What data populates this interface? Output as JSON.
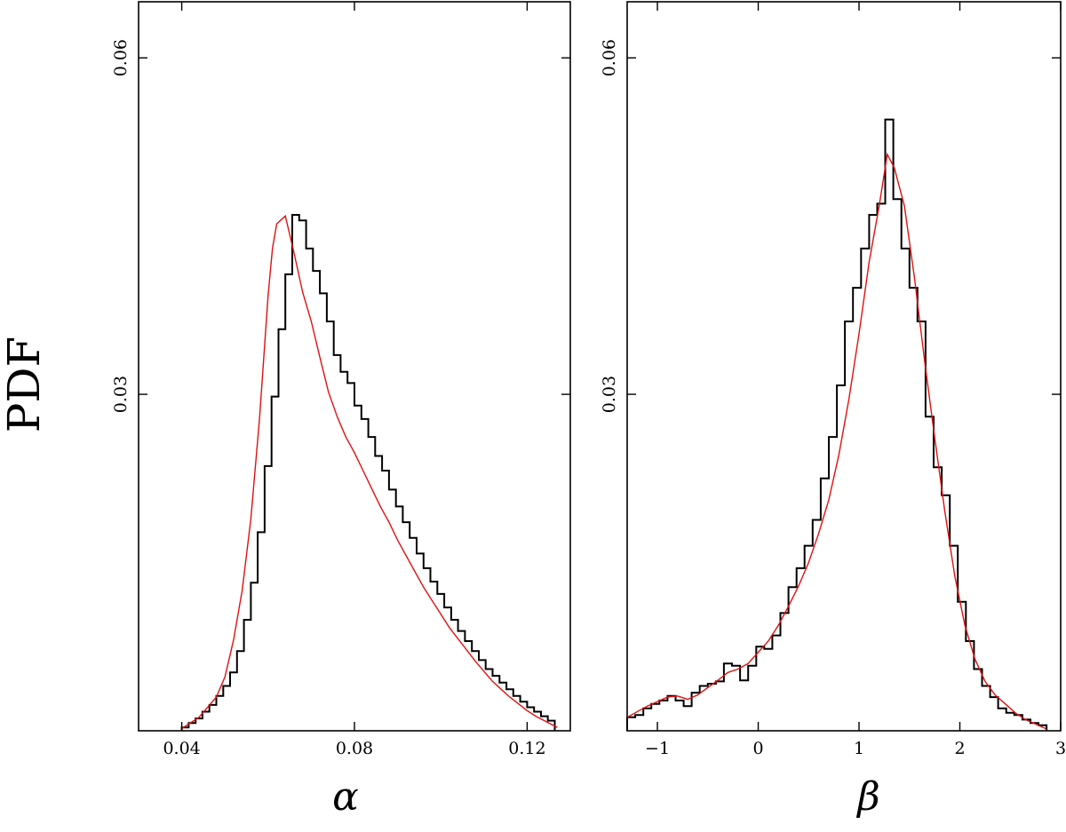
{
  "figure": {
    "ylabel": "PDF"
  },
  "chart_data": [
    {
      "type": "bar",
      "xlabel": "α",
      "ylabel": "PDF",
      "xlim": [
        0.03,
        0.13
      ],
      "ylim": [
        0.0,
        0.065
      ],
      "xticks": [
        0.04,
        0.08,
        0.12
      ],
      "xtick_labels": [
        "0.04",
        "0.08",
        "0.12"
      ],
      "yticks": [
        0.03,
        0.06
      ],
      "ytick_labels": [
        "0.03",
        "0.06"
      ],
      "grid": false,
      "series": [
        {
          "kind": "histogram-step",
          "color": "#000000",
          "bin_edges": [
            0.04,
            0.0416,
            0.0432,
            0.0448,
            0.0464,
            0.048,
            0.0496,
            0.0512,
            0.0528,
            0.0544,
            0.056,
            0.0576,
            0.0592,
            0.0608,
            0.0624,
            0.064,
            0.0656,
            0.0672,
            0.0688,
            0.0704,
            0.072,
            0.0736,
            0.0752,
            0.0768,
            0.0784,
            0.08,
            0.0816,
            0.0832,
            0.0848,
            0.0864,
            0.088,
            0.0896,
            0.0912,
            0.0928,
            0.0944,
            0.096,
            0.0976,
            0.0992,
            0.1008,
            0.1024,
            0.104,
            0.1056,
            0.1072,
            0.1088,
            0.1104,
            0.112,
            0.1136,
            0.1152,
            0.1168,
            0.1184,
            0.12,
            0.1216,
            0.1232,
            0.1248,
            0.1264
          ],
          "values": [
            0.0003,
            0.0007,
            0.0011,
            0.0017,
            0.0023,
            0.0031,
            0.004,
            0.0052,
            0.0071,
            0.0099,
            0.0132,
            0.0177,
            0.0236,
            0.0298,
            0.0358,
            0.0407,
            0.046,
            0.0455,
            0.043,
            0.041,
            0.039,
            0.0365,
            0.0335,
            0.032,
            0.031,
            0.029,
            0.0278,
            0.0262,
            0.0245,
            0.0232,
            0.0215,
            0.02,
            0.0186,
            0.0172,
            0.0158,
            0.0145,
            0.0133,
            0.0122,
            0.011,
            0.0099,
            0.0089,
            0.008,
            0.0071,
            0.0063,
            0.0055,
            0.0049,
            0.0043,
            0.0037,
            0.0031,
            0.0026,
            0.0021,
            0.0017,
            0.0013,
            0.0009
          ]
        },
        {
          "kind": "smoothed-density",
          "color": "#e01010",
          "x": [
            0.04,
            0.044,
            0.048,
            0.05,
            0.052,
            0.054,
            0.056,
            0.058,
            0.06,
            0.061,
            0.062,
            0.064,
            0.066,
            0.068,
            0.07,
            0.072,
            0.074,
            0.076,
            0.078,
            0.08,
            0.082,
            0.084,
            0.086,
            0.088,
            0.09,
            0.092,
            0.094,
            0.096,
            0.098,
            0.1,
            0.102,
            0.104,
            0.106,
            0.108,
            0.11,
            0.112,
            0.114,
            0.116,
            0.118,
            0.12,
            0.122,
            0.124,
            0.126,
            0.127
          ],
          "y": [
            0.0002,
            0.0012,
            0.003,
            0.0048,
            0.0081,
            0.0125,
            0.0189,
            0.0278,
            0.0388,
            0.043,
            0.0452,
            0.0459,
            0.0426,
            0.0391,
            0.0365,
            0.0333,
            0.0302,
            0.028,
            0.0262,
            0.0248,
            0.0232,
            0.0216,
            0.02,
            0.0186,
            0.017,
            0.0156,
            0.0142,
            0.0128,
            0.0116,
            0.0104,
            0.0092,
            0.0082,
            0.0072,
            0.0062,
            0.0053,
            0.0044,
            0.0037,
            0.003,
            0.0024,
            0.0018,
            0.0013,
            0.0009,
            0.0005,
            0.0003
          ]
        }
      ]
    },
    {
      "type": "bar",
      "xlabel": "β",
      "ylabel": "PDF",
      "xlim": [
        -1.3,
        3.0
      ],
      "ylim": [
        0.0,
        0.065
      ],
      "xticks": [
        -1,
        0,
        1,
        2,
        3
      ],
      "xtick_labels": [
        "−1",
        "0",
        "1",
        "2",
        "3"
      ],
      "yticks": [
        0.03,
        0.06
      ],
      "ytick_labels": [
        "0.03",
        "0.06"
      ],
      "grid": false,
      "series": [
        {
          "kind": "histogram-step",
          "color": "#000000",
          "bin_edges": [
            -1.3,
            -1.22,
            -1.14,
            -1.06,
            -0.98,
            -0.9,
            -0.82,
            -0.74,
            -0.66,
            -0.58,
            -0.5,
            -0.42,
            -0.34,
            -0.26,
            -0.18,
            -0.1,
            -0.02,
            0.06,
            0.14,
            0.22,
            0.3,
            0.38,
            0.46,
            0.54,
            0.62,
            0.7,
            0.78,
            0.86,
            0.94,
            1.02,
            1.1,
            1.18,
            1.26,
            1.34,
            1.42,
            1.5,
            1.58,
            1.66,
            1.74,
            1.82,
            1.9,
            1.98,
            2.06,
            2.14,
            2.22,
            2.3,
            2.38,
            2.46,
            2.54,
            2.62,
            2.7,
            2.78,
            2.86
          ],
          "values": [
            0.0012,
            0.0014,
            0.002,
            0.0024,
            0.0027,
            0.0031,
            0.0027,
            0.0022,
            0.0034,
            0.004,
            0.0042,
            0.0044,
            0.006,
            0.0058,
            0.0045,
            0.0058,
            0.0075,
            0.0073,
            0.0085,
            0.0105,
            0.0128,
            0.0145,
            0.0165,
            0.0188,
            0.0225,
            0.0262,
            0.0308,
            0.0365,
            0.0395,
            0.043,
            0.046,
            0.047,
            0.0545,
            0.0474,
            0.043,
            0.0395,
            0.0365,
            0.028,
            0.0235,
            0.021,
            0.0165,
            0.0115,
            0.008,
            0.0055,
            0.004,
            0.003,
            0.002,
            0.0016,
            0.0014,
            0.001,
            0.0007,
            0.0005
          ]
        },
        {
          "kind": "smoothed-density",
          "color": "#e01010",
          "x": [
            -1.3,
            -1.1,
            -0.9,
            -0.8,
            -0.7,
            -0.6,
            -0.4,
            -0.3,
            -0.2,
            -0.1,
            0.0,
            0.1,
            0.2,
            0.3,
            0.4,
            0.5,
            0.6,
            0.7,
            0.8,
            0.9,
            1.0,
            1.1,
            1.2,
            1.28,
            1.35,
            1.45,
            1.55,
            1.65,
            1.75,
            1.85,
            1.95,
            2.05,
            2.15,
            2.25,
            2.35,
            2.45,
            2.55,
            2.65,
            2.75,
            2.85
          ],
          "y": [
            0.0012,
            0.0022,
            0.003,
            0.0031,
            0.0028,
            0.0032,
            0.0045,
            0.0052,
            0.0055,
            0.006,
            0.007,
            0.008,
            0.0094,
            0.0111,
            0.0129,
            0.015,
            0.0176,
            0.0206,
            0.0246,
            0.0296,
            0.0354,
            0.0418,
            0.0468,
            0.0514,
            0.0502,
            0.0468,
            0.0404,
            0.033,
            0.0262,
            0.0196,
            0.0138,
            0.0094,
            0.0064,
            0.0044,
            0.0032,
            0.0024,
            0.0016,
            0.001,
            0.0006,
            0.0002
          ]
        }
      ]
    }
  ]
}
